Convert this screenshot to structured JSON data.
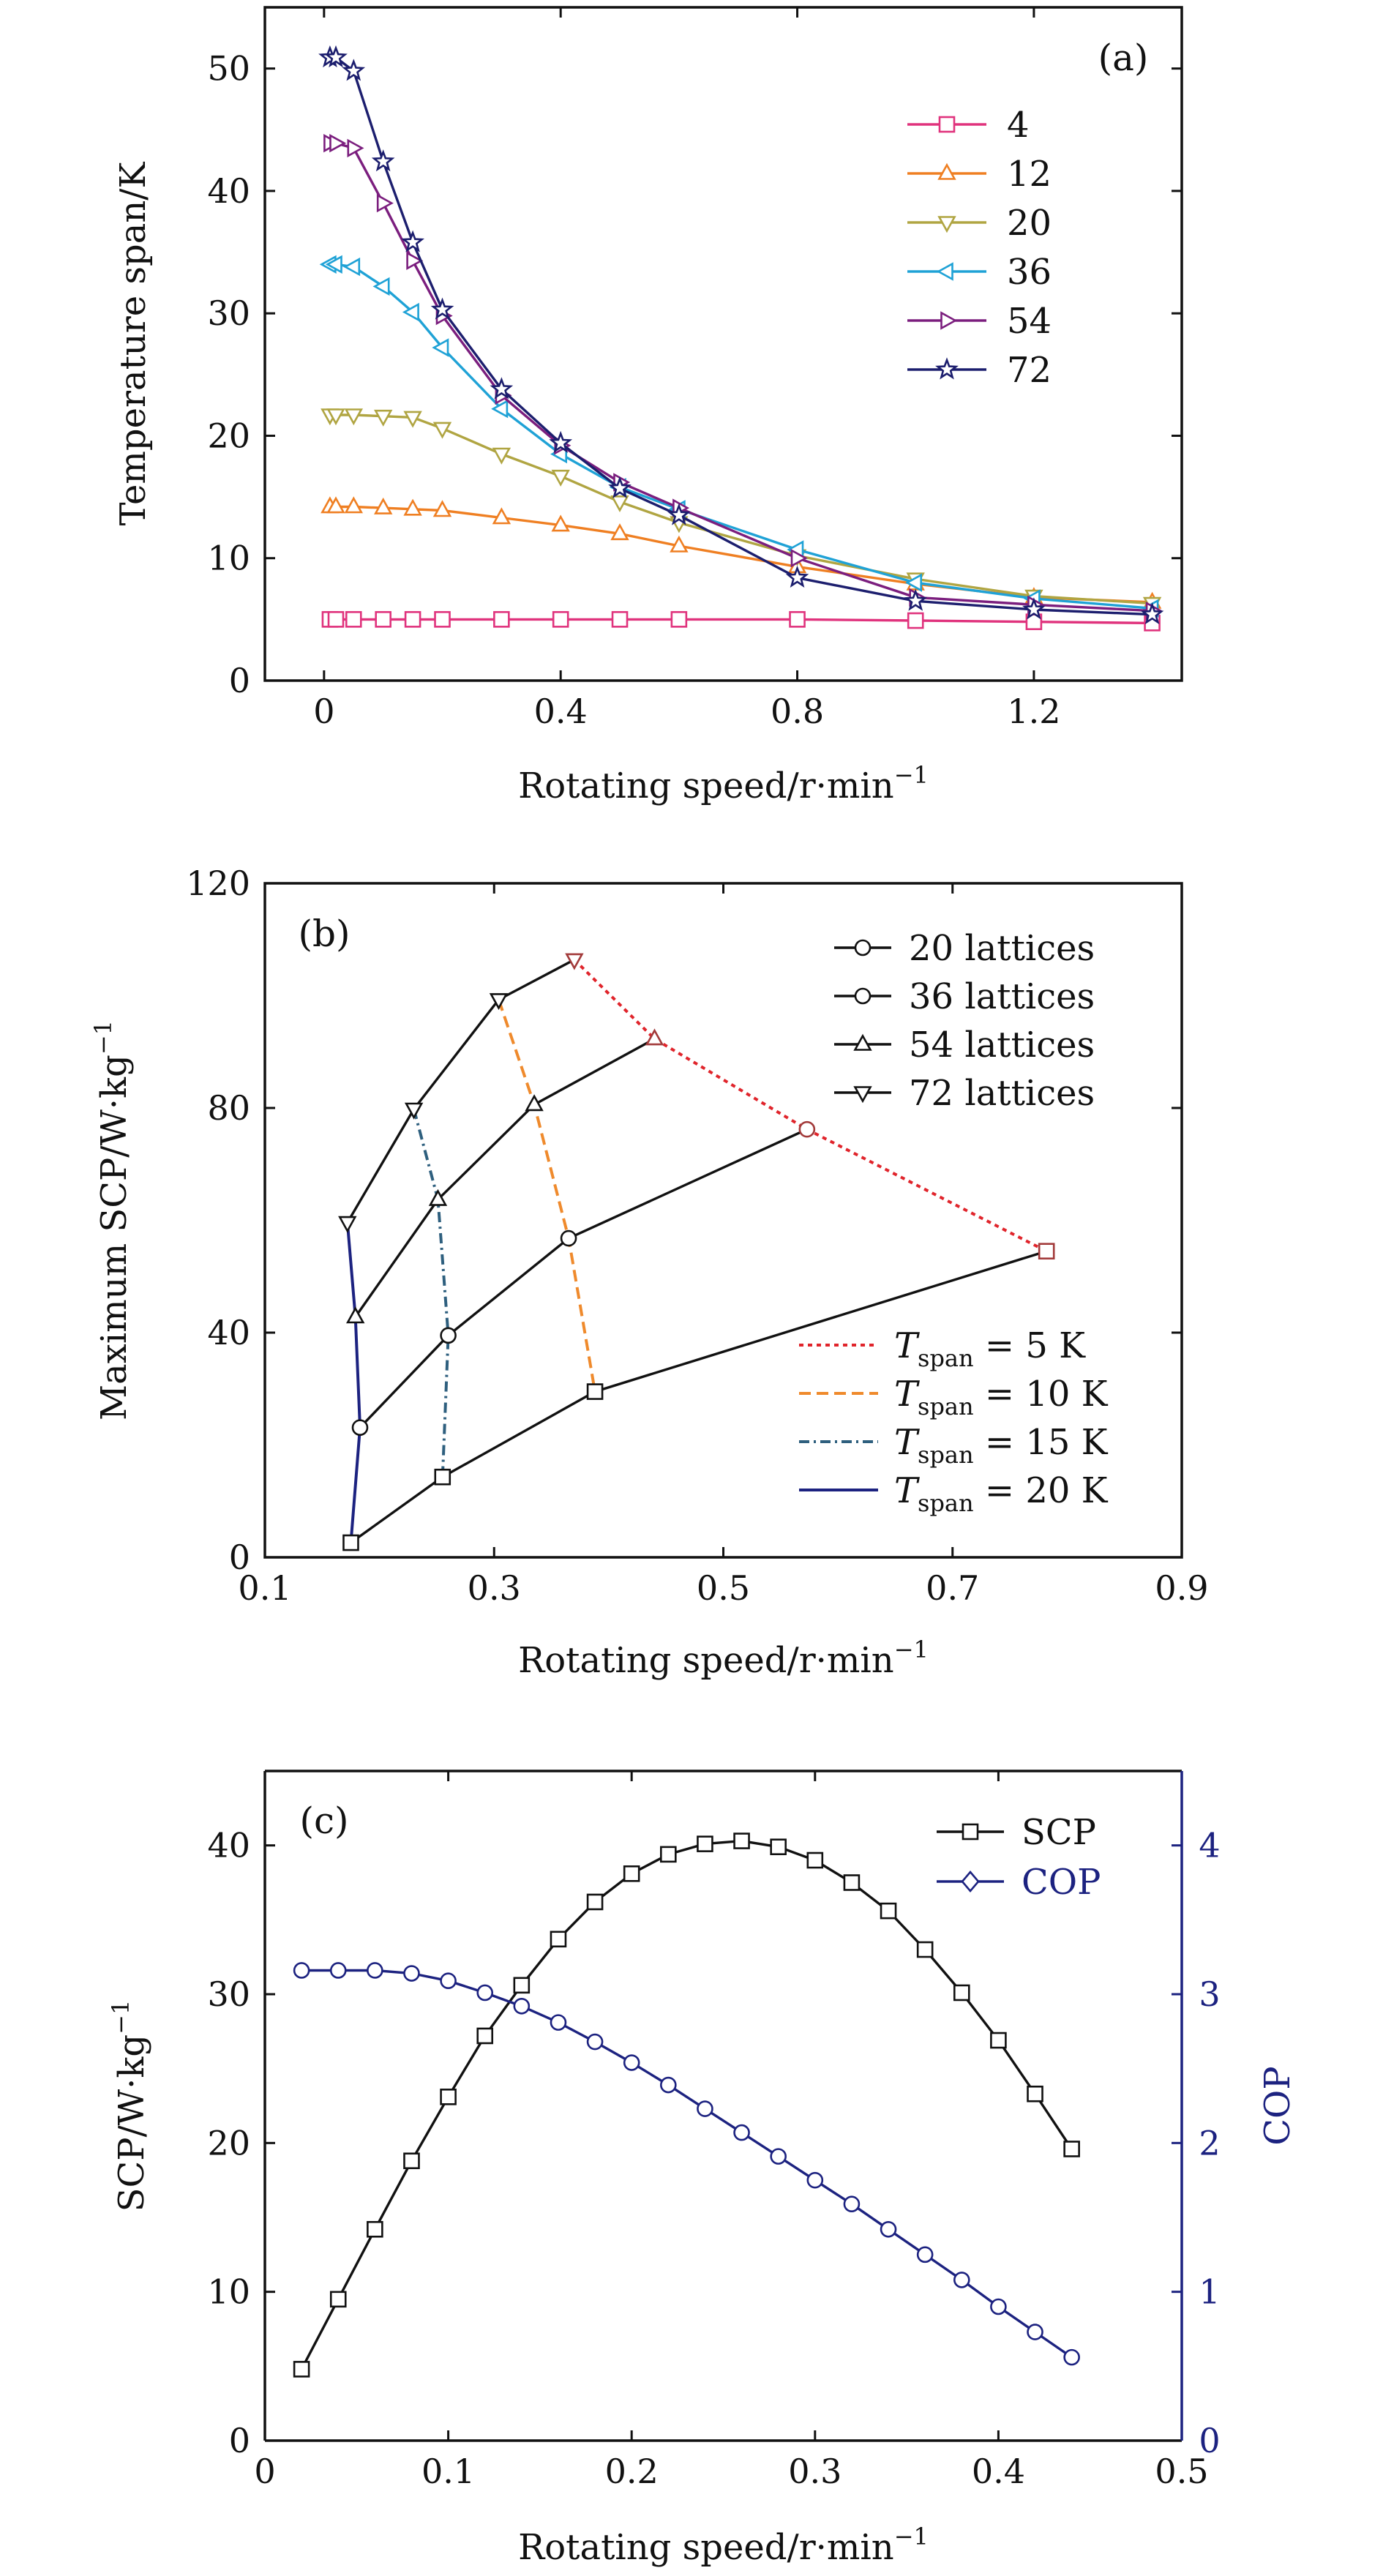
{
  "chart_data": [
    {
      "panel": "(a)",
      "type": "line",
      "xlabel": "Rotating speed/r·min",
      "xlabel_sup": "−1",
      "ylabel": "Temperature span/K",
      "xlim": [
        -0.1,
        1.45
      ],
      "ylim": [
        0,
        55
      ],
      "xticks": [
        0,
        0.4,
        0.8,
        1.2
      ],
      "xtick_labels": [
        "0",
        "0.4",
        "0.8",
        "1.2"
      ],
      "yticks": [
        0,
        10,
        20,
        30,
        40,
        50
      ],
      "ytick_labels": [
        "0",
        "10",
        "20",
        "30",
        "40",
        "50"
      ],
      "grid": false,
      "legend_position": "top-right",
      "series": [
        {
          "name": "4",
          "color": "#e0337d",
          "marker": "square",
          "x": [
            0.01,
            0.02,
            0.05,
            0.1,
            0.15,
            0.2,
            0.3,
            0.4,
            0.5,
            0.6,
            0.8,
            1.0,
            1.2,
            1.4
          ],
          "y": [
            5,
            5,
            5,
            5,
            5,
            5,
            5,
            5,
            5,
            5,
            5,
            4.9,
            4.8,
            4.7
          ]
        },
        {
          "name": "12",
          "color": "#ef7f22",
          "marker": "triangle-up",
          "x": [
            0.01,
            0.02,
            0.05,
            0.1,
            0.15,
            0.2,
            0.3,
            0.4,
            0.5,
            0.6,
            0.8,
            1.0,
            1.2,
            1.4
          ],
          "y": [
            14.2,
            14.2,
            14.2,
            14.1,
            14.0,
            13.9,
            13.3,
            12.7,
            12.0,
            11.0,
            9.3,
            7.9,
            6.8,
            6.4
          ]
        },
        {
          "name": "20",
          "color": "#b0a542",
          "marker": "triangle-down",
          "x": [
            0.01,
            0.02,
            0.05,
            0.1,
            0.15,
            0.2,
            0.3,
            0.4,
            0.5,
            0.6,
            0.8,
            1.0,
            1.2,
            1.4
          ],
          "y": [
            21.7,
            21.7,
            21.7,
            21.6,
            21.5,
            20.6,
            18.5,
            16.7,
            14.6,
            12.9,
            10.2,
            8.3,
            6.9,
            6.3
          ]
        },
        {
          "name": "36",
          "color": "#1fa2d6",
          "marker": "triangle-left",
          "x": [
            0.01,
            0.02,
            0.05,
            0.1,
            0.15,
            0.2,
            0.3,
            0.4,
            0.5,
            0.6,
            0.8,
            1.0,
            1.2,
            1.4
          ],
          "y": [
            34.0,
            34.0,
            33.8,
            32.2,
            30.1,
            27.2,
            22.2,
            18.5,
            15.8,
            14.0,
            10.7,
            8.0,
            6.7,
            5.9
          ]
        },
        {
          "name": "54",
          "color": "#7b1e7e",
          "marker": "triangle-right",
          "x": [
            0.01,
            0.02,
            0.05,
            0.1,
            0.15,
            0.2,
            0.3,
            0.4,
            0.5,
            0.6,
            0.8,
            1.0,
            1.2,
            1.4
          ],
          "y": [
            43.9,
            43.9,
            43.5,
            39.0,
            34.3,
            29.8,
            23.3,
            19.2,
            16.2,
            14.1,
            10.0,
            6.8,
            6.2,
            5.7
          ]
        },
        {
          "name": "72",
          "color": "#1c1e6e",
          "marker": "star",
          "x": [
            0.01,
            0.02,
            0.05,
            0.1,
            0.15,
            0.2,
            0.3,
            0.4,
            0.5,
            0.6,
            0.8,
            1.0,
            1.2,
            1.4
          ],
          "y": [
            50.9,
            50.9,
            49.8,
            42.4,
            35.8,
            30.3,
            23.8,
            19.4,
            15.7,
            13.5,
            8.4,
            6.5,
            5.8,
            5.4
          ]
        }
      ]
    },
    {
      "panel": "(b)",
      "type": "line",
      "xlabel": "Rotating speed/r·min",
      "xlabel_sup": "−1",
      "ylabel": "Maximum SCP/W·kg",
      "ylabel_sup": "−1",
      "xlim": [
        0.1,
        0.9
      ],
      "ylim": [
        0,
        120
      ],
      "xticks": [
        0.1,
        0.3,
        0.5,
        0.7,
        0.9
      ],
      "xtick_labels": [
        "0.1",
        "0.3",
        "0.5",
        "0.7",
        "0.9"
      ],
      "yticks": [
        0,
        40,
        80,
        120
      ],
      "ytick_labels": [
        "0",
        "40",
        "80",
        "120"
      ],
      "grid": false,
      "legend_position": "top-right",
      "lower_legend_position": "bottom-right",
      "series": [
        {
          "name": "20 lattices",
          "marker": "square",
          "color": "#111111",
          "x": [
            0.175,
            0.255,
            0.388,
            0.782
          ],
          "y": [
            2.6,
            14.3,
            29.5,
            54.5
          ]
        },
        {
          "name": "36 lattices",
          "marker": "circle",
          "color": "#111111",
          "x": [
            0.183,
            0.26,
            0.365,
            0.573
          ],
          "y": [
            23.1,
            39.5,
            56.8,
            76.2
          ]
        },
        {
          "name": "54 lattices",
          "marker": "triangle-up",
          "color": "#111111",
          "x": [
            0.179,
            0.251,
            0.335,
            0.44
          ],
          "y": [
            42.8,
            63.7,
            80.6,
            92.3
          ]
        },
        {
          "name": "72 lattices",
          "marker": "triangle-down",
          "color": "#111111",
          "x": [
            0.172,
            0.23,
            0.304,
            0.37
          ],
          "y": [
            59.6,
            79.8,
            99.3,
            106.4
          ]
        }
      ],
      "iso_lines": [
        {
          "name_prefix": "T",
          "name_sub": "span",
          "name_suffix": " = 5 K",
          "color": "#e0242b",
          "dash": "6,6",
          "x": [
            0.37,
            0.44,
            0.573,
            0.782
          ],
          "y": [
            106.4,
            92.3,
            76.2,
            54.5
          ]
        },
        {
          "name_prefix": "T",
          "name_sub": "span",
          "name_suffix": " = 10 K",
          "color": "#ef8a2c",
          "dash": "16,8",
          "x": [
            0.304,
            0.335,
            0.365,
            0.388
          ],
          "y": [
            99.3,
            80.6,
            56.8,
            29.5
          ]
        },
        {
          "name_prefix": "T",
          "name_sub": "span",
          "name_suffix": " = 15 K",
          "color": "#2e5f7e",
          "dash": "14,6,3,6",
          "x": [
            0.23,
            0.251,
            0.26,
            0.255
          ],
          "y": [
            79.8,
            63.7,
            39.5,
            14.3
          ]
        },
        {
          "name_prefix": "T",
          "name_sub": "span",
          "name_suffix": " = 20 K",
          "color": "#1c2280",
          "dash": "",
          "x": [
            0.172,
            0.179,
            0.183,
            0.175
          ],
          "y": [
            59.6,
            42.8,
            23.1,
            2.6
          ]
        }
      ]
    },
    {
      "panel": "(c)",
      "type": "line",
      "xlabel": "Rotating speed/r·min",
      "xlabel_sup": "−1",
      "ylabel": "SCP/W·kg",
      "ylabel_sup": "−1",
      "y2label": "COP",
      "xlim": [
        0,
        0.5
      ],
      "ylim": [
        0,
        45
      ],
      "y2lim": [
        0,
        4.5
      ],
      "xticks": [
        0,
        0.1,
        0.2,
        0.3,
        0.4,
        0.5
      ],
      "xtick_labels": [
        "0",
        "0.1",
        "0.2",
        "0.3",
        "0.4",
        "0.5"
      ],
      "yticks": [
        0,
        10,
        20,
        30,
        40
      ],
      "ytick_labels": [
        "0",
        "10",
        "20",
        "30",
        "40"
      ],
      "y2ticks": [
        0,
        1,
        2,
        3,
        4
      ],
      "y2tick_labels": [
        "0",
        "1",
        "2",
        "3",
        "4"
      ],
      "grid": false,
      "legend_position": "top-right",
      "x": [
        0.02,
        0.04,
        0.06,
        0.08,
        0.1,
        0.12,
        0.14,
        0.16,
        0.18,
        0.2,
        0.22,
        0.24,
        0.26,
        0.28,
        0.3,
        0.32,
        0.34,
        0.36,
        0.38,
        0.4,
        0.42,
        0.44
      ],
      "series": [
        {
          "name": "SCP",
          "axis": "left",
          "marker": "square",
          "color": "#111111",
          "y": [
            4.8,
            9.5,
            14.2,
            18.8,
            23.1,
            27.2,
            30.6,
            33.7,
            36.2,
            38.1,
            39.4,
            40.1,
            40.3,
            39.9,
            39.0,
            37.5,
            35.6,
            33.0,
            30.1,
            26.9,
            23.3,
            19.6
          ]
        },
        {
          "name": "COP",
          "axis": "right",
          "marker": "circle",
          "color": "#1c2280",
          "y": [
            3.16,
            3.16,
            3.16,
            3.14,
            3.09,
            3.01,
            2.92,
            2.81,
            2.68,
            2.54,
            2.39,
            2.23,
            2.07,
            1.91,
            1.75,
            1.59,
            1.42,
            1.25,
            1.08,
            0.9,
            0.73,
            0.56
          ]
        }
      ]
    }
  ]
}
